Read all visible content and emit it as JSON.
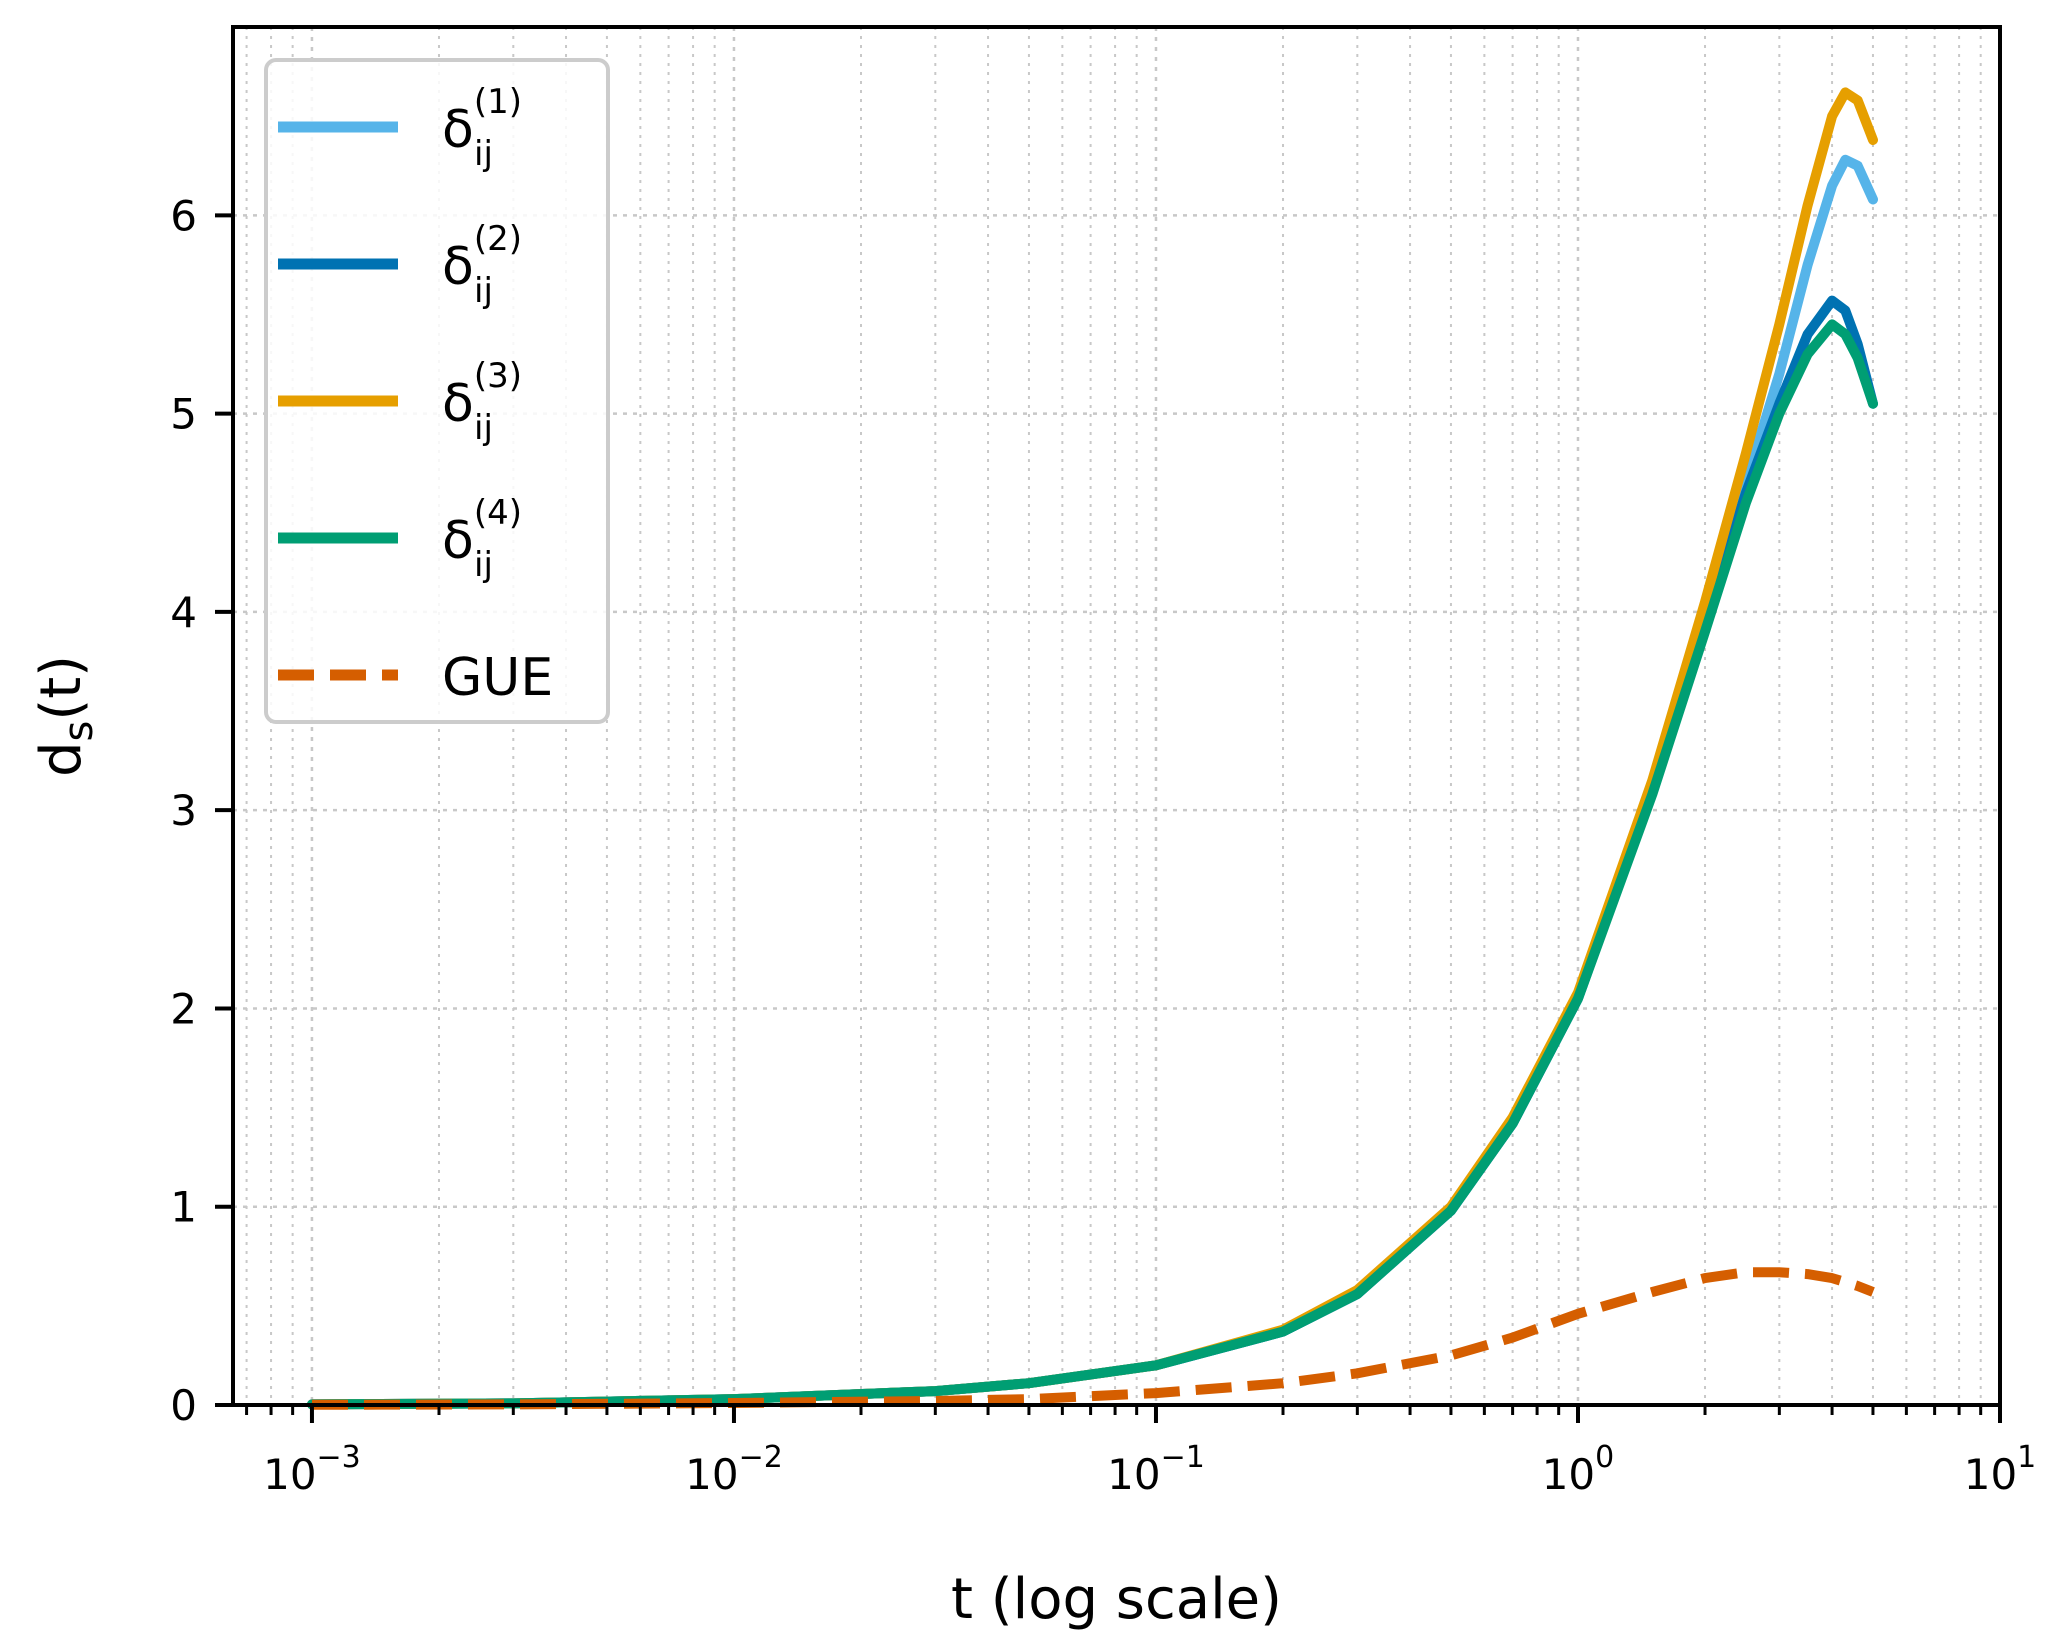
{
  "chart_data": {
    "type": "line",
    "xscale": "log",
    "xlabel": "t (log scale)",
    "ylabel_base": "d",
    "ylabel_sub": "s",
    "ylabel_rest": "(t)",
    "xlim": [
      0.00065,
      10
    ],
    "ylim": [
      0,
      6.95
    ],
    "grid": true,
    "grid_style": "dotted",
    "legend_position": "top-left",
    "x_ticks": [
      {
        "base": "10",
        "exp": "−3",
        "value": 0.001
      },
      {
        "base": "10",
        "exp": "−2",
        "value": 0.01
      },
      {
        "base": "10",
        "exp": "−1",
        "value": 0.1
      },
      {
        "base": "10",
        "exp": "0",
        "value": 1
      },
      {
        "base": "10",
        "exp": "1",
        "value": 10
      }
    ],
    "y_ticks": [
      {
        "label": "0",
        "value": 0
      },
      {
        "label": "1",
        "value": 1
      },
      {
        "label": "2",
        "value": 2
      },
      {
        "label": "3",
        "value": 3
      },
      {
        "label": "4",
        "value": 4
      },
      {
        "label": "5",
        "value": 5
      },
      {
        "label": "6",
        "value": 6
      }
    ],
    "x": [
      0.001,
      0.003,
      0.01,
      0.03,
      0.05,
      0.1,
      0.2,
      0.3,
      0.5,
      0.7,
      1.0,
      1.5,
      2.0,
      2.5,
      3.0,
      3.5,
      4.0,
      4.3,
      4.6,
      5.0
    ],
    "series": [
      {
        "name": "1",
        "label_base": "δ",
        "label_sub": "ij",
        "label_sup": "(1)",
        "color": "#56b4e9",
        "dash": "solid",
        "values": [
          0.003,
          0.008,
          0.03,
          0.07,
          0.11,
          0.2,
          0.37,
          0.56,
          0.98,
          1.42,
          2.05,
          3.1,
          3.95,
          4.65,
          5.2,
          5.75,
          6.15,
          6.28,
          6.25,
          6.08
        ]
      },
      {
        "name": "2",
        "label_base": "δ",
        "label_sub": "ij",
        "label_sup": "(2)",
        "color": "#0072b2",
        "dash": "solid",
        "values": [
          0.003,
          0.008,
          0.03,
          0.07,
          0.11,
          0.2,
          0.37,
          0.56,
          0.98,
          1.42,
          2.05,
          3.1,
          3.95,
          4.6,
          5.05,
          5.4,
          5.57,
          5.52,
          5.35,
          5.05
        ]
      },
      {
        "name": "3",
        "label_base": "δ",
        "label_sub": "ij",
        "label_sup": "(3)",
        "color": "#e69f00",
        "dash": "solid",
        "values": [
          0.003,
          0.008,
          0.03,
          0.07,
          0.11,
          0.2,
          0.38,
          0.58,
          1.0,
          1.45,
          2.08,
          3.15,
          4.05,
          4.8,
          5.45,
          6.05,
          6.5,
          6.62,
          6.58,
          6.38
        ]
      },
      {
        "name": "4",
        "label_base": "δ",
        "label_sub": "ij",
        "label_sup": "(4)",
        "color": "#009e73",
        "dash": "solid",
        "values": [
          0.003,
          0.008,
          0.03,
          0.07,
          0.11,
          0.2,
          0.37,
          0.56,
          0.98,
          1.42,
          2.05,
          3.08,
          3.9,
          4.55,
          5.0,
          5.3,
          5.45,
          5.4,
          5.28,
          5.05
        ]
      },
      {
        "name": "GUE",
        "label_text": "GUE",
        "color": "#d55e00",
        "dash": "dashed",
        "values": [
          0.001,
          0.003,
          0.01,
          0.02,
          0.03,
          0.06,
          0.11,
          0.16,
          0.25,
          0.34,
          0.46,
          0.57,
          0.64,
          0.67,
          0.67,
          0.66,
          0.64,
          0.62,
          0.6,
          0.57
        ]
      }
    ]
  }
}
